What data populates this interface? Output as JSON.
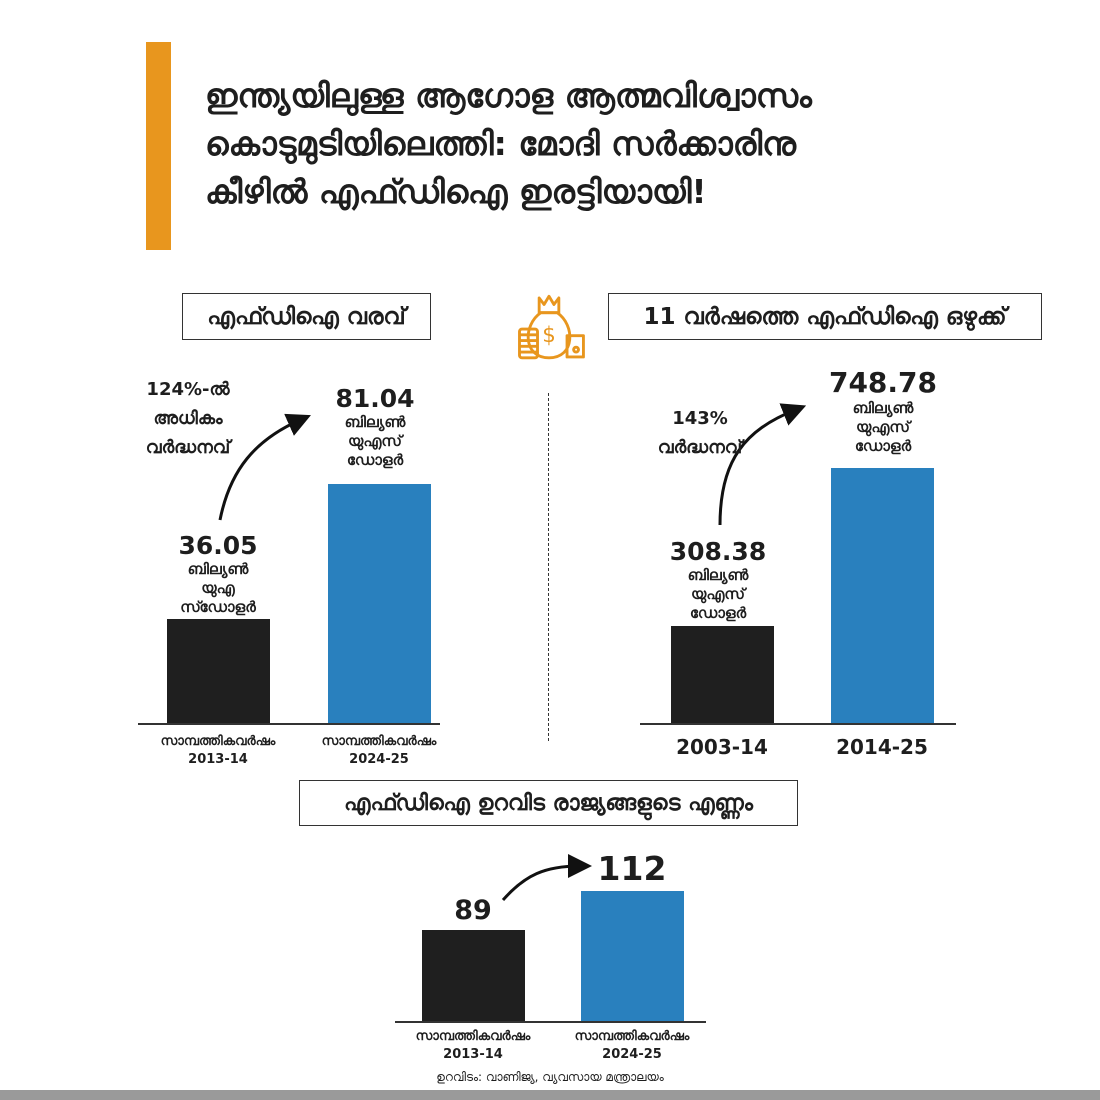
{
  "title": [
    "ഇന്ത്യയിലുള്ള ആഗോള ആത്മവിശ്വാസം",
    "കൊടുമുടിയിലെത്തി: മോദി സർക്കാരിനു",
    "കീഴിൽ എഫ്ഡിഐ ഇരട്ടിയായി!"
  ],
  "colors": {
    "accent": "#E8961E",
    "bar_old": "#1f1f1f",
    "bar_new": "#2980BE"
  },
  "icon": "money-bag-icon",
  "chart_data": [
    {
      "type": "bar",
      "title": "എഫ്ഡിഐ വരവ്",
      "categories": [
        "സാമ്പത്തികവർഷം 2013-14",
        "സാമ്പത്തികവർഷം 2024-25"
      ],
      "cat_lines": [
        [
          "സാമ്പത്തികവർഷം",
          "2013-14"
        ],
        [
          "സാമ്പത്തികവർഷം",
          "2024-25"
        ]
      ],
      "values": [
        36.05,
        81.04
      ],
      "value_labels": [
        "36.05",
        "81.04"
      ],
      "units": [
        [
          "ബില്യൺ",
          "യുഎ",
          "സ്ഡോളർ"
        ],
        [
          "ബില്യൺ",
          "യുഎസ്",
          "ഡോളർ"
        ]
      ],
      "annotation": [
        "124%-ൽ",
        "അധികം",
        "വർദ്ധനവ്"
      ]
    },
    {
      "type": "bar",
      "title": "11 വർഷത്തെ എഫ്ഡിഐ ഒഴുക്ക്",
      "categories": [
        "2003-14",
        "2014-25"
      ],
      "values": [
        308.38,
        748.78
      ],
      "value_labels": [
        "308.38",
        "748.78"
      ],
      "units": [
        [
          "ബില്യൺ",
          "യുഎസ്",
          "ഡോളർ"
        ],
        [
          "ബില്യൺ",
          "യുഎസ്",
          "ഡോളർ"
        ]
      ],
      "annotation": [
        "143%",
        "വർദ്ധനവ്"
      ]
    },
    {
      "type": "bar",
      "title": "എഫ്ഡിഐ ഉറവിട രാജ്യങ്ങളുടെ എണ്ണം",
      "categories": [
        "സാമ്പത്തികവർഷം 2013-14",
        "സാമ്പത്തികവർഷം 2024-25"
      ],
      "cat_lines": [
        [
          "സാമ്പത്തികവർഷം",
          "2013-14"
        ],
        [
          "സാമ്പത്തികവർഷം",
          "2024-25"
        ]
      ],
      "values": [
        89,
        112
      ],
      "value_labels": [
        "89",
        "112"
      ]
    }
  ],
  "source": "ഉറവിടം: വാണിജ്യ, വ്യവസായ മന്ത്രാലയം"
}
